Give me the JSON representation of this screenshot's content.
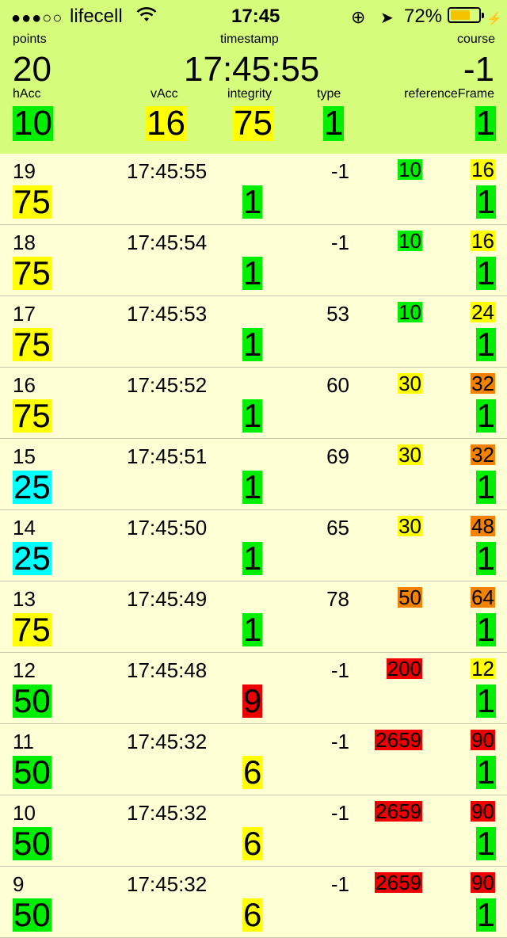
{
  "status_bar": {
    "signal": "●●●○○",
    "carrier": "lifecell",
    "wifi_icon": "wifi-icon",
    "time": "17:45",
    "lock_icon": "⊕",
    "location_icon": "➤",
    "battery_percent": "72%",
    "battery_level": 0.72,
    "bolt": "⚡"
  },
  "summary": {
    "points_label": "points",
    "points": "20",
    "timestamp_label": "timestamp",
    "timestamp": "17:45:55",
    "course_label": "course",
    "course": "-1",
    "hAcc_label": "hAcc",
    "hAcc": "10",
    "vAcc_label": "vAcc",
    "vAcc": "16",
    "integrity_label": "integrity",
    "integrity": "75",
    "type_label": "type",
    "type": "1",
    "referenceFrame_label": "referenceFrame",
    "referenceFrame": "1"
  },
  "colors": {
    "green": "#00ee00",
    "yellow": "#ffff00",
    "orange": "#f38200",
    "red": "#ee0000",
    "cyan": "#00ffff",
    "header_bg": "#d6fc7c",
    "list_bg": "#ffffd6"
  },
  "rows": [
    {
      "index": "19",
      "time": "17:45:55",
      "course": "-1",
      "hAcc": "10",
      "hAcc_color": "green",
      "vAcc": "16",
      "vAcc_color": "yellow",
      "integrity": "75",
      "integrity_color": "yellow",
      "type": "1",
      "type_color": "green",
      "ref": "1",
      "ref_color": "green"
    },
    {
      "index": "18",
      "time": "17:45:54",
      "course": "-1",
      "hAcc": "10",
      "hAcc_color": "green",
      "vAcc": "16",
      "vAcc_color": "yellow",
      "integrity": "75",
      "integrity_color": "yellow",
      "type": "1",
      "type_color": "green",
      "ref": "1",
      "ref_color": "green"
    },
    {
      "index": "17",
      "time": "17:45:53",
      "course": "53",
      "hAcc": "10",
      "hAcc_color": "green",
      "vAcc": "24",
      "vAcc_color": "yellow",
      "integrity": "75",
      "integrity_color": "yellow",
      "type": "1",
      "type_color": "green",
      "ref": "1",
      "ref_color": "green"
    },
    {
      "index": "16",
      "time": "17:45:52",
      "course": "60",
      "hAcc": "30",
      "hAcc_color": "yellow",
      "vAcc": "32",
      "vAcc_color": "orange",
      "integrity": "75",
      "integrity_color": "yellow",
      "type": "1",
      "type_color": "green",
      "ref": "1",
      "ref_color": "green"
    },
    {
      "index": "15",
      "time": "17:45:51",
      "course": "69",
      "hAcc": "30",
      "hAcc_color": "yellow",
      "vAcc": "32",
      "vAcc_color": "orange",
      "integrity": "25",
      "integrity_color": "cyan",
      "type": "1",
      "type_color": "green",
      "ref": "1",
      "ref_color": "green"
    },
    {
      "index": "14",
      "time": "17:45:50",
      "course": "65",
      "hAcc": "30",
      "hAcc_color": "yellow",
      "vAcc": "48",
      "vAcc_color": "orange",
      "integrity": "25",
      "integrity_color": "cyan",
      "type": "1",
      "type_color": "green",
      "ref": "1",
      "ref_color": "green"
    },
    {
      "index": "13",
      "time": "17:45:49",
      "course": "78",
      "hAcc": "50",
      "hAcc_color": "orange",
      "vAcc": "64",
      "vAcc_color": "orange",
      "integrity": "75",
      "integrity_color": "yellow",
      "type": "1",
      "type_color": "green",
      "ref": "1",
      "ref_color": "green"
    },
    {
      "index": "12",
      "time": "17:45:48",
      "course": "-1",
      "hAcc": "200",
      "hAcc_color": "red",
      "vAcc": "12",
      "vAcc_color": "yellow",
      "integrity": "50",
      "integrity_color": "green",
      "type": "9",
      "type_color": "red",
      "ref": "1",
      "ref_color": "green"
    },
    {
      "index": "11",
      "time": "17:45:32",
      "course": "-1",
      "hAcc": "2659",
      "hAcc_color": "red",
      "vAcc": "90",
      "vAcc_color": "red",
      "integrity": "50",
      "integrity_color": "green",
      "type": "6",
      "type_color": "yellow",
      "ref": "1",
      "ref_color": "green"
    },
    {
      "index": "10",
      "time": "17:45:32",
      "course": "-1",
      "hAcc": "2659",
      "hAcc_color": "red",
      "vAcc": "90",
      "vAcc_color": "red",
      "integrity": "50",
      "integrity_color": "green",
      "type": "6",
      "type_color": "yellow",
      "ref": "1",
      "ref_color": "green"
    },
    {
      "index": "9",
      "time": "17:45:32",
      "course": "-1",
      "hAcc": "2659",
      "hAcc_color": "red",
      "vAcc": "90",
      "vAcc_color": "red",
      "integrity": "50",
      "integrity_color": "green",
      "type": "6",
      "type_color": "yellow",
      "ref": "1",
      "ref_color": "green"
    }
  ]
}
